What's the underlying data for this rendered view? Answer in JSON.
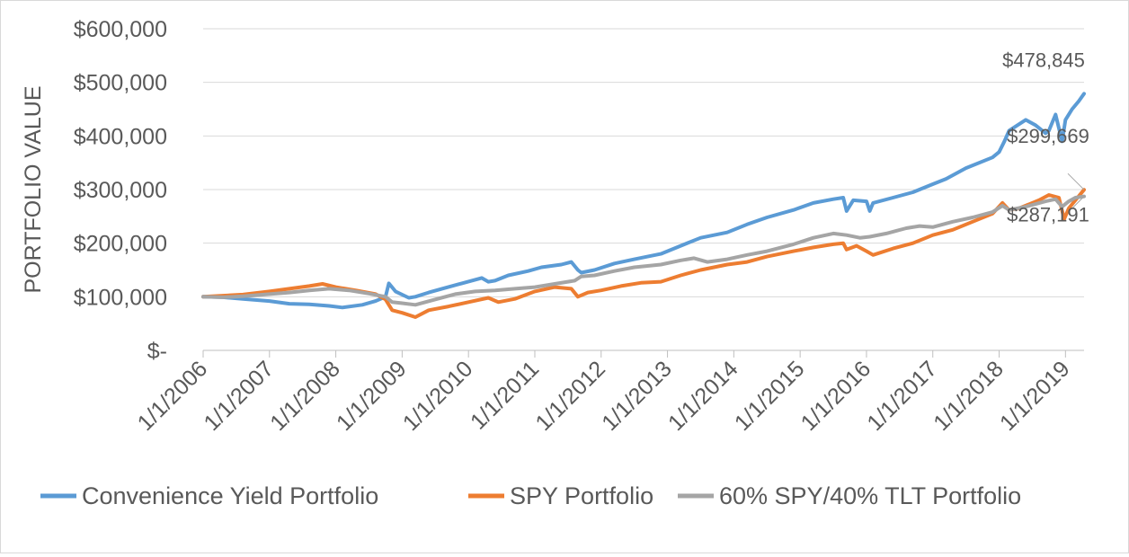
{
  "chart_data": {
    "type": "line",
    "title": "",
    "xlabel": "",
    "ylabel": "PORTFOLIO VALUE",
    "ylim": [
      0,
      600000
    ],
    "yticks": [
      {
        "value": 0,
        "label": "$-"
      },
      {
        "value": 100000,
        "label": "$100,000"
      },
      {
        "value": 200000,
        "label": "$200,000"
      },
      {
        "value": 300000,
        "label": "$300,000"
      },
      {
        "value": 400000,
        "label": "$400,000"
      },
      {
        "value": 500000,
        "label": "$500,000"
      },
      {
        "value": 600000,
        "label": "$600,000"
      }
    ],
    "xlim": [
      2006.0,
      2019.28
    ],
    "xticks": [
      {
        "value": 2006,
        "label": "1/1/2006"
      },
      {
        "value": 2007,
        "label": "1/1/2007"
      },
      {
        "value": 2008,
        "label": "1/1/2008"
      },
      {
        "value": 2009,
        "label": "1/1/2009"
      },
      {
        "value": 2010,
        "label": "1/1/2010"
      },
      {
        "value": 2011,
        "label": "1/1/2011"
      },
      {
        "value": 2012,
        "label": "1/1/2012"
      },
      {
        "value": 2013,
        "label": "1/1/2013"
      },
      {
        "value": 2014,
        "label": "1/1/2014"
      },
      {
        "value": 2015,
        "label": "1/1/2015"
      },
      {
        "value": 2016,
        "label": "1/1/2016"
      },
      {
        "value": 2017,
        "label": "1/1/2017"
      },
      {
        "value": 2018,
        "label": "1/1/2018"
      },
      {
        "value": 2019,
        "label": "1/1/2019"
      }
    ],
    "grid": "horizontal",
    "legend": "bottom",
    "series": [
      {
        "name": "Convenience Yield Portfolio",
        "color": "#5b9bd5",
        "x": [
          2006.0,
          2006.3,
          2006.6,
          2007.0,
          2007.3,
          2007.6,
          2007.9,
          2008.1,
          2008.4,
          2008.6,
          2008.75,
          2008.8,
          2008.9,
          2009.1,
          2009.2,
          2009.4,
          2009.6,
          2009.9,
          2010.2,
          2010.3,
          2010.4,
          2010.6,
          2010.9,
          2011.1,
          2011.4,
          2011.55,
          2011.65,
          2011.7,
          2011.9,
          2012.2,
          2012.5,
          2012.9,
          2013.2,
          2013.5,
          2013.9,
          2014.2,
          2014.5,
          2014.9,
          2015.2,
          2015.5,
          2015.65,
          2015.7,
          2015.8,
          2016.0,
          2016.05,
          2016.1,
          2016.4,
          2016.7,
          2017.0,
          2017.2,
          2017.5,
          2017.9,
          2018.0,
          2018.08,
          2018.15,
          2018.4,
          2018.55,
          2018.7,
          2018.75,
          2018.85,
          2018.95,
          2019.0,
          2019.1,
          2019.2,
          2019.28
        ],
        "y": [
          100000,
          99000,
          96000,
          92000,
          87000,
          86000,
          83000,
          80000,
          85000,
          92000,
          100000,
          125000,
          110000,
          98000,
          100000,
          108000,
          115000,
          125000,
          135000,
          128000,
          130000,
          140000,
          148000,
          155000,
          160000,
          165000,
          150000,
          145000,
          150000,
          162000,
          170000,
          180000,
          195000,
          210000,
          220000,
          235000,
          248000,
          262000,
          275000,
          282000,
          285000,
          260000,
          280000,
          278000,
          260000,
          275000,
          285000,
          295000,
          310000,
          320000,
          340000,
          360000,
          370000,
          390000,
          410000,
          430000,
          420000,
          405000,
          410000,
          440000,
          390000,
          430000,
          450000,
          465000,
          478845
        ]
      },
      {
        "name": "SPY Portfolio",
        "color": "#ed7d31",
        "x": [
          2006.0,
          2006.3,
          2006.6,
          2007.0,
          2007.3,
          2007.6,
          2007.8,
          2008.0,
          2008.3,
          2008.6,
          2008.75,
          2008.85,
          2009.0,
          2009.2,
          2009.4,
          2009.7,
          2010.0,
          2010.3,
          2010.45,
          2010.7,
          2011.0,
          2011.3,
          2011.55,
          2011.65,
          2011.8,
          2012.0,
          2012.3,
          2012.6,
          2012.9,
          2013.2,
          2013.5,
          2013.9,
          2014.2,
          2014.5,
          2014.9,
          2015.2,
          2015.5,
          2015.65,
          2015.7,
          2015.85,
          2016.0,
          2016.1,
          2016.4,
          2016.7,
          2017.0,
          2017.3,
          2017.6,
          2017.9,
          2018.05,
          2018.15,
          2018.3,
          2018.6,
          2018.75,
          2018.9,
          2018.98,
          2019.05,
          2019.15,
          2019.28
        ],
        "y": [
          100000,
          102000,
          104000,
          110000,
          115000,
          120000,
          124000,
          118000,
          112000,
          105000,
          95000,
          75000,
          70000,
          62000,
          75000,
          82000,
          90000,
          98000,
          90000,
          96000,
          110000,
          118000,
          115000,
          100000,
          108000,
          112000,
          120000,
          126000,
          128000,
          140000,
          150000,
          160000,
          165000,
          175000,
          185000,
          192000,
          198000,
          200000,
          188000,
          195000,
          185000,
          178000,
          190000,
          200000,
          215000,
          225000,
          240000,
          255000,
          275000,
          262000,
          265000,
          280000,
          290000,
          285000,
          245000,
          265000,
          280000,
          299669
        ]
      },
      {
        "name": "60% SPY/40% TLT Portfolio",
        "color": "#a5a5a5",
        "x": [
          2006.0,
          2006.3,
          2006.6,
          2007.0,
          2007.3,
          2007.6,
          2007.9,
          2008.2,
          2008.5,
          2008.75,
          2008.85,
          2009.0,
          2009.2,
          2009.5,
          2009.8,
          2010.1,
          2010.4,
          2010.7,
          2011.0,
          2011.3,
          2011.6,
          2011.7,
          2011.9,
          2012.2,
          2012.5,
          2012.9,
          2013.2,
          2013.4,
          2013.6,
          2013.9,
          2014.2,
          2014.5,
          2014.9,
          2015.2,
          2015.5,
          2015.7,
          2015.9,
          2016.05,
          2016.3,
          2016.6,
          2016.8,
          2017.0,
          2017.3,
          2017.6,
          2017.9,
          2018.05,
          2018.15,
          2018.4,
          2018.7,
          2018.85,
          2018.95,
          2019.05,
          2019.15,
          2019.28
        ],
        "y": [
          100000,
          99000,
          101000,
          105000,
          108000,
          112000,
          115000,
          112000,
          106000,
          100000,
          90000,
          88000,
          85000,
          95000,
          105000,
          110000,
          112000,
          115000,
          118000,
          124000,
          130000,
          138000,
          140000,
          148000,
          155000,
          160000,
          168000,
          172000,
          165000,
          170000,
          178000,
          185000,
          198000,
          210000,
          218000,
          215000,
          210000,
          212000,
          218000,
          228000,
          232000,
          230000,
          240000,
          248000,
          258000,
          270000,
          262000,
          268000,
          278000,
          282000,
          268000,
          278000,
          285000,
          287191
        ]
      }
    ],
    "annotations": [
      {
        "text": "$478,845",
        "series": 0
      },
      {
        "text": "$299,669",
        "series": 1
      },
      {
        "text": "$287,191",
        "series": 2
      }
    ]
  }
}
